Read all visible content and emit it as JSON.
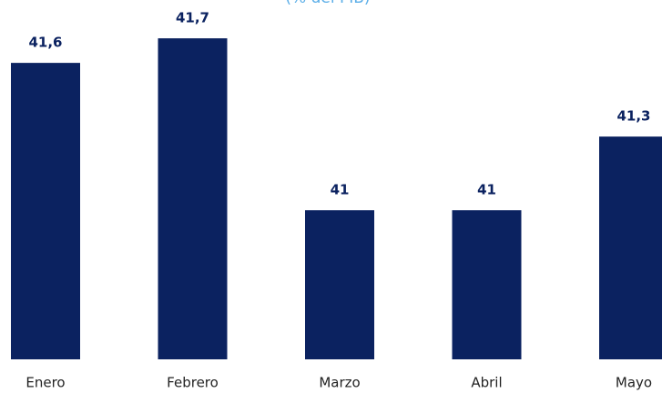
{
  "chart_data": {
    "type": "bar",
    "subtitle": "(% del PIB)",
    "categories": [
      "Enero",
      "Febrero",
      "Marzo",
      "Abril",
      "Mayo"
    ],
    "values": [
      41.6,
      41.7,
      41,
      41,
      41.3
    ],
    "value_labels": [
      "41,6",
      "41,7",
      "41",
      "41",
      "41,3"
    ],
    "color": "#0b2260",
    "ylim": [
      40.393,
      41.856
    ]
  }
}
